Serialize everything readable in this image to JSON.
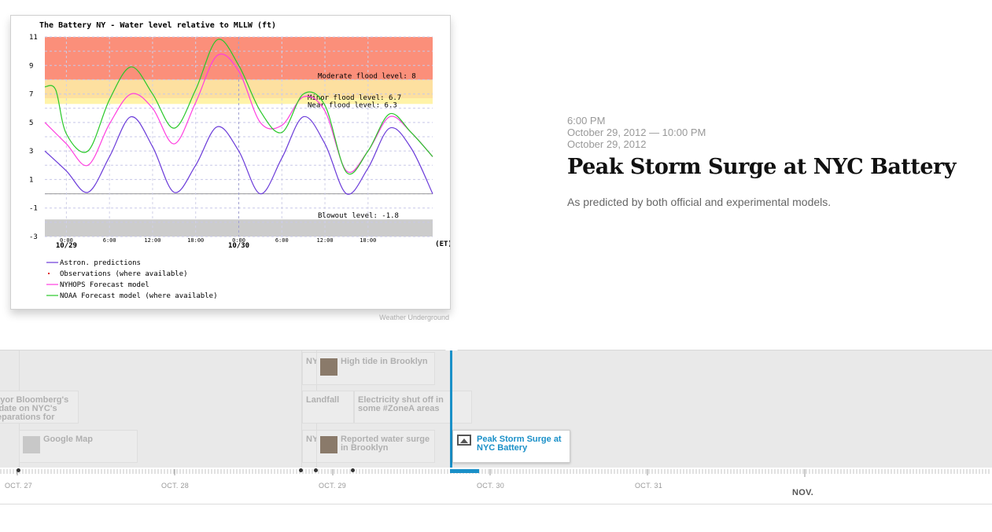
{
  "slide": {
    "time_start": "6:00 PM",
    "date_start": "October 29, 2012 — 10:00 PM",
    "date_end": "October 29, 2012",
    "headline": "Peak Storm Surge at NYC Battery",
    "description": "As predicted by both official and experimental models.",
    "credit": "Weather Underground"
  },
  "chart_data": {
    "type": "line",
    "title": "The Battery NY  -  Water level relative to MLLW (ft)",
    "ylim": [
      -3,
      11
    ],
    "yticks": [
      "11",
      "9",
      "7",
      "5",
      "3",
      "1",
      "-1",
      "-3"
    ],
    "xticks": [
      "0:00",
      "6:00",
      "12:00",
      "18:00",
      "0:00",
      "6:00",
      "12:00",
      "18:00"
    ],
    "xdates": [
      "10/29",
      "10/30"
    ],
    "x_unit": "(ET)",
    "levels": [
      {
        "label": "Moderate flood level: 8",
        "value": 8
      },
      {
        "label": "Minor flood level: 6.7",
        "value": 6.7
      },
      {
        "label": "Near flood level: 6.3",
        "value": 6.3
      },
      {
        "label": "Blowout level: -1.8",
        "value": -1.8
      }
    ],
    "legend": [
      {
        "name": "Astron. predictions",
        "color": "#6a3ad9"
      },
      {
        "name": "Observations (where available)",
        "color": "#e02020"
      },
      {
        "name": "NYHOPS Forecast model",
        "color": "#ff3ddf"
      },
      {
        "name": "NOAA Forecast model (where available)",
        "color": "#28c828"
      }
    ],
    "series": [
      {
        "name": "Astron. predictions",
        "color": "#6a3ad9",
        "x": [
          -3,
          0,
          3,
          6,
          9,
          12,
          15,
          18,
          21,
          24,
          27,
          30,
          33,
          36,
          39,
          42,
          45,
          48,
          51
        ],
        "y": [
          3.0,
          1.6,
          0.1,
          2.6,
          5.4,
          3.3,
          0.1,
          2.0,
          4.7,
          3.0,
          0.0,
          2.5,
          5.4,
          3.5,
          0.0,
          1.8,
          4.6,
          3.2,
          0.0
        ]
      },
      {
        "name": "NYHOPS Forecast model",
        "color": "#ff3ddf",
        "x": [
          -3,
          0,
          3,
          6,
          9,
          12,
          15,
          18,
          21,
          24,
          27,
          30,
          33,
          36,
          39,
          42,
          45,
          48,
          51
        ],
        "y": [
          5.0,
          3.5,
          2.0,
          4.9,
          7.0,
          6.0,
          3.5,
          6.4,
          9.7,
          8.6,
          5.0,
          4.8,
          6.8,
          5.8,
          1.6,
          3.0,
          5.4,
          4.3,
          2.6
        ]
      },
      {
        "name": "NOAA Forecast model (where available)",
        "color": "#28c828",
        "x": [
          -3,
          -1.5,
          0,
          3,
          6,
          9,
          12,
          15,
          18,
          21,
          24,
          27,
          30,
          33,
          36,
          39,
          42,
          45,
          48,
          51
        ],
        "y": [
          7.5,
          7.3,
          4.2,
          3.0,
          6.6,
          8.9,
          7.0,
          4.6,
          7.3,
          10.8,
          9.0,
          5.8,
          4.3,
          7.0,
          6.2,
          1.5,
          3.0,
          5.6,
          4.3,
          2.6
        ]
      }
    ]
  },
  "timenav": {
    "flags": [
      {
        "title": "High tide in Brooklyn",
        "thumb": true
      },
      {
        "title": "Mayor Bloomberg's update on NYC's preparations for",
        "thumb": false
      },
      {
        "title": "Landfall",
        "thumb": false
      },
      {
        "title": "Electricity shut off in some #ZoneA areas",
        "thumb": false
      },
      {
        "title": "Google Map",
        "thumb": true
      },
      {
        "title": "Reported water surge in Brooklyn",
        "thumb": true
      },
      {
        "title": "Peak Storm Surge at NYC Battery",
        "thumb": "image-icon"
      },
      {
        "title": "NY",
        "thumb": false
      },
      {
        "title": "NY",
        "thumb": false
      }
    ],
    "dates": [
      "OCT. 27",
      "OCT. 28",
      "OCT. 29",
      "OCT. 30",
      "OCT. 31"
    ],
    "major_date": "NOV."
  }
}
